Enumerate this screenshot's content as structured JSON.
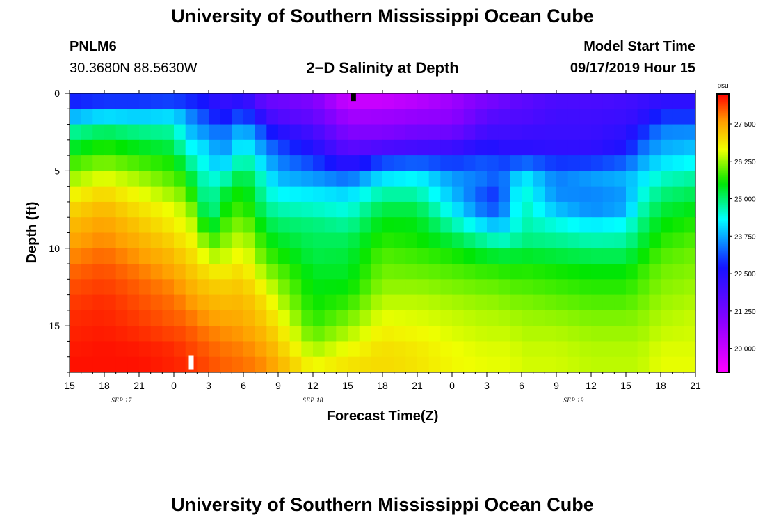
{
  "header": {
    "title_top": "University of Southern Mississippi Ocean Cube",
    "title_bottom": "University of Southern Mississippi Ocean Cube",
    "station_id": "PNLM6",
    "station_coords": "30.3680N 88.5630W",
    "chart_subtitle": "2−D Salinity at Depth",
    "model_start_label": "Model Start Time",
    "model_start_value": "09/17/2019 Hour 15"
  },
  "chart_data": {
    "type": "heatmap",
    "title": "2−D Salinity at Depth",
    "xlabel": "Forecast Time(Z)",
    "ylabel": "Depth (ft)",
    "x_hours_range": [
      0,
      54
    ],
    "y_depth_range_ft": [
      0,
      18
    ],
    "x_ticks": [
      {
        "hour": 0,
        "label": "15"
      },
      {
        "hour": 3,
        "label": "18"
      },
      {
        "hour": 6,
        "label": "21"
      },
      {
        "hour": 9,
        "label": "0"
      },
      {
        "hour": 12,
        "label": "3"
      },
      {
        "hour": 15,
        "label": "6"
      },
      {
        "hour": 18,
        "label": "9"
      },
      {
        "hour": 21,
        "label": "12"
      },
      {
        "hour": 24,
        "label": "15"
      },
      {
        "hour": 27,
        "label": "18"
      },
      {
        "hour": 30,
        "label": "21"
      },
      {
        "hour": 33,
        "label": "0"
      },
      {
        "hour": 36,
        "label": "3"
      },
      {
        "hour": 39,
        "label": "6"
      },
      {
        "hour": 42,
        "label": "9"
      },
      {
        "hour": 45,
        "label": "12"
      },
      {
        "hour": 48,
        "label": "15"
      },
      {
        "hour": 51,
        "label": "18"
      },
      {
        "hour": 54,
        "label": "21"
      }
    ],
    "y_ticks": [
      {
        "depth": 0,
        "label": "0"
      },
      {
        "depth": 5,
        "label": "5"
      },
      {
        "depth": 10,
        "label": "10"
      },
      {
        "depth": 15,
        "label": "15"
      }
    ],
    "date_labels": [
      {
        "hour": 4.5,
        "label": "SEP 17"
      },
      {
        "hour": 21,
        "label": "SEP 18"
      },
      {
        "hour": 43.5,
        "label": "SEP 19"
      }
    ],
    "colorbar": {
      "unit": "psu",
      "range": [
        19.2,
        28.5
      ],
      "ticks": [
        "27.500",
        "26.250",
        "25.000",
        "23.750",
        "22.500",
        "21.250",
        "20.000"
      ],
      "tick_values": [
        27.5,
        26.25,
        25.0,
        23.75,
        22.5,
        21.25,
        20.0
      ]
    },
    "salinity_psu": {
      "hours": [
        0,
        3,
        6,
        9,
        10,
        11,
        12,
        13,
        15,
        17,
        18,
        21,
        24,
        27,
        30,
        33,
        36,
        37,
        38,
        39,
        42,
        45,
        48,
        49,
        51,
        54
      ],
      "depths_ft": [
        0,
        1,
        2,
        3,
        4,
        5,
        6,
        7,
        8,
        9,
        10,
        11,
        12,
        13,
        14,
        15,
        16,
        17,
        18
      ],
      "values": [
        [
          22.6,
          22.5,
          22.5,
          22.5,
          22.4,
          22.4,
          22.4,
          22.4,
          22.3,
          21.3,
          21.4,
          21.0,
          19.6,
          19.6,
          20.0,
          20.5,
          21.0,
          21.1,
          21.4,
          21.6,
          21.9,
          21.9,
          22.0,
          22.1,
          22.2,
          22.2
        ],
        [
          23.0,
          23.4,
          23.4,
          23.6,
          23.4,
          23.2,
          22.9,
          22.0,
          22.6,
          21.6,
          21.4,
          21.2,
          20.4,
          20.4,
          20.5,
          20.7,
          21.4,
          21.5,
          21.6,
          21.6,
          21.9,
          21.9,
          22.0,
          22.1,
          22.5,
          22.5
        ],
        [
          24.6,
          24.8,
          24.6,
          24.6,
          24.0,
          23.3,
          23.2,
          23.2,
          23.8,
          22.6,
          22.2,
          21.8,
          20.7,
          20.8,
          21.0,
          21.0,
          21.9,
          22.0,
          22.0,
          22.0,
          22.2,
          22.2,
          22.3,
          22.4,
          23.4,
          23.4
        ],
        [
          25.0,
          25.4,
          25.2,
          25.0,
          24.2,
          24.0,
          24.0,
          23.2,
          24.1,
          23.3,
          22.8,
          22.2,
          21.4,
          21.3,
          21.6,
          21.7,
          22.2,
          22.1,
          22.1,
          22.2,
          22.1,
          22.1,
          22.4,
          23.0,
          23.6,
          23.7
        ],
        [
          25.6,
          25.9,
          25.6,
          25.4,
          24.7,
          24.3,
          24.1,
          23.6,
          24.7,
          23.6,
          23.4,
          22.8,
          21.8,
          22.4,
          22.4,
          22.5,
          22.9,
          22.8,
          22.6,
          22.6,
          22.5,
          22.5,
          22.8,
          23.4,
          23.9,
          24.1
        ],
        [
          26.0,
          26.3,
          26.1,
          25.8,
          25.4,
          24.7,
          24.4,
          24.0,
          25.2,
          24.2,
          23.6,
          23.3,
          22.9,
          23.8,
          24.1,
          23.5,
          23.5,
          23.3,
          23.5,
          24.1,
          23.4,
          23.5,
          23.7,
          23.9,
          24.4,
          24.6
        ],
        [
          26.5,
          26.9,
          26.5,
          26.0,
          25.9,
          25.0,
          24.6,
          25.0,
          25.6,
          24.5,
          24.1,
          24.0,
          23.8,
          24.5,
          24.5,
          23.8,
          23.2,
          23.0,
          23.8,
          24.5,
          23.5,
          23.8,
          23.9,
          24.2,
          24.8,
          25.0
        ],
        [
          26.9,
          27.2,
          26.8,
          26.5,
          26.2,
          25.6,
          24.4,
          25.3,
          25.8,
          24.7,
          24.5,
          24.4,
          24.3,
          25.0,
          25.0,
          24.0,
          22.9,
          22.9,
          23.8,
          24.7,
          23.6,
          23.2,
          23.4,
          24.4,
          25.1,
          25.3
        ],
        [
          27.2,
          27.5,
          27.1,
          26.7,
          26.5,
          26.1,
          24.6,
          25.6,
          26.0,
          25.1,
          24.9,
          24.8,
          24.6,
          25.4,
          25.4,
          24.5,
          23.6,
          23.5,
          24.0,
          24.7,
          24.2,
          23.9,
          24.1,
          24.7,
          25.4,
          25.6
        ],
        [
          27.4,
          27.6,
          27.3,
          26.9,
          26.7,
          26.5,
          25.4,
          25.9,
          26.4,
          25.4,
          25.2,
          25.1,
          25.0,
          25.6,
          25.5,
          25.0,
          24.4,
          24.2,
          24.3,
          24.8,
          24.7,
          24.5,
          24.6,
          25.0,
          25.6,
          25.8
        ],
        [
          27.6,
          27.8,
          27.5,
          27.2,
          26.9,
          26.8,
          26.0,
          26.2,
          26.6,
          25.7,
          25.5,
          25.1,
          25.2,
          25.8,
          25.7,
          25.5,
          25.1,
          25.0,
          25.0,
          25.1,
          25.0,
          24.9,
          24.9,
          25.3,
          25.8,
          26.0
        ],
        [
          27.8,
          28.0,
          27.7,
          27.4,
          27.2,
          27.0,
          26.7,
          26.6,
          26.9,
          26.0,
          25.8,
          25.3,
          25.3,
          26.0,
          25.9,
          25.8,
          25.6,
          25.6,
          25.5,
          25.6,
          25.5,
          25.4,
          25.4,
          25.6,
          26.0,
          26.1
        ],
        [
          28.0,
          28.1,
          27.9,
          27.6,
          27.4,
          27.2,
          27.1,
          27.0,
          27.1,
          26.4,
          26.1,
          25.4,
          25.4,
          26.1,
          26.1,
          26.0,
          25.9,
          25.9,
          25.8,
          25.8,
          25.7,
          25.6,
          25.6,
          25.8,
          26.1,
          26.2
        ],
        [
          28.1,
          28.2,
          28.0,
          27.8,
          27.6,
          27.4,
          27.3,
          27.2,
          27.3,
          26.8,
          26.3,
          25.5,
          25.6,
          26.3,
          26.3,
          26.2,
          26.1,
          26.1,
          26.0,
          26.0,
          25.9,
          25.8,
          25.8,
          25.9,
          26.2,
          26.3
        ],
        [
          28.2,
          28.3,
          28.1,
          27.9,
          27.8,
          27.6,
          27.5,
          27.4,
          27.4,
          27.0,
          26.6,
          25.6,
          25.9,
          26.5,
          26.5,
          26.4,
          26.3,
          26.3,
          26.2,
          26.2,
          26.1,
          26.0,
          26.0,
          26.1,
          26.3,
          26.4
        ],
        [
          28.3,
          28.3,
          28.2,
          28.0,
          28.0,
          27.8,
          27.7,
          27.6,
          27.5,
          27.2,
          26.9,
          25.8,
          26.2,
          26.7,
          26.6,
          26.5,
          26.4,
          26.4,
          26.4,
          26.3,
          26.3,
          26.2,
          26.2,
          26.2,
          26.4,
          26.5
        ],
        [
          28.3,
          28.4,
          28.3,
          28.2,
          28.1,
          28.0,
          27.9,
          27.8,
          27.7,
          27.4,
          27.1,
          26.1,
          26.5,
          26.9,
          26.8,
          26.6,
          26.5,
          26.5,
          26.5,
          26.4,
          26.4,
          26.3,
          26.3,
          26.3,
          26.5,
          26.5
        ],
        [
          28.4,
          28.4,
          28.4,
          28.3,
          28.2,
          28.1,
          28.0,
          27.9,
          27.8,
          27.6,
          27.3,
          26.5,
          26.8,
          27.0,
          26.9,
          26.7,
          26.6,
          26.6,
          26.6,
          26.5,
          26.5,
          26.4,
          26.4,
          26.4,
          26.6,
          26.6
        ],
        [
          28.4,
          28.4,
          28.4,
          28.3,
          28.3,
          28.2,
          28.1,
          28.0,
          27.9,
          27.7,
          27.5,
          26.8,
          27.0,
          27.0,
          26.9,
          26.7,
          26.6,
          26.6,
          26.6,
          26.5,
          26.5,
          26.4,
          26.4,
          26.4,
          26.6,
          26.6
        ]
      ]
    },
    "markers": [
      {
        "name": "now-marker-top",
        "hour": 24.5,
        "depth_from": 0,
        "depth_to": 0.5,
        "color": "#000000"
      },
      {
        "name": "now-marker-bottom",
        "hour": 10.5,
        "depth_from": 16.9,
        "depth_to": 17.8,
        "color": "#ffffff"
      }
    ]
  }
}
